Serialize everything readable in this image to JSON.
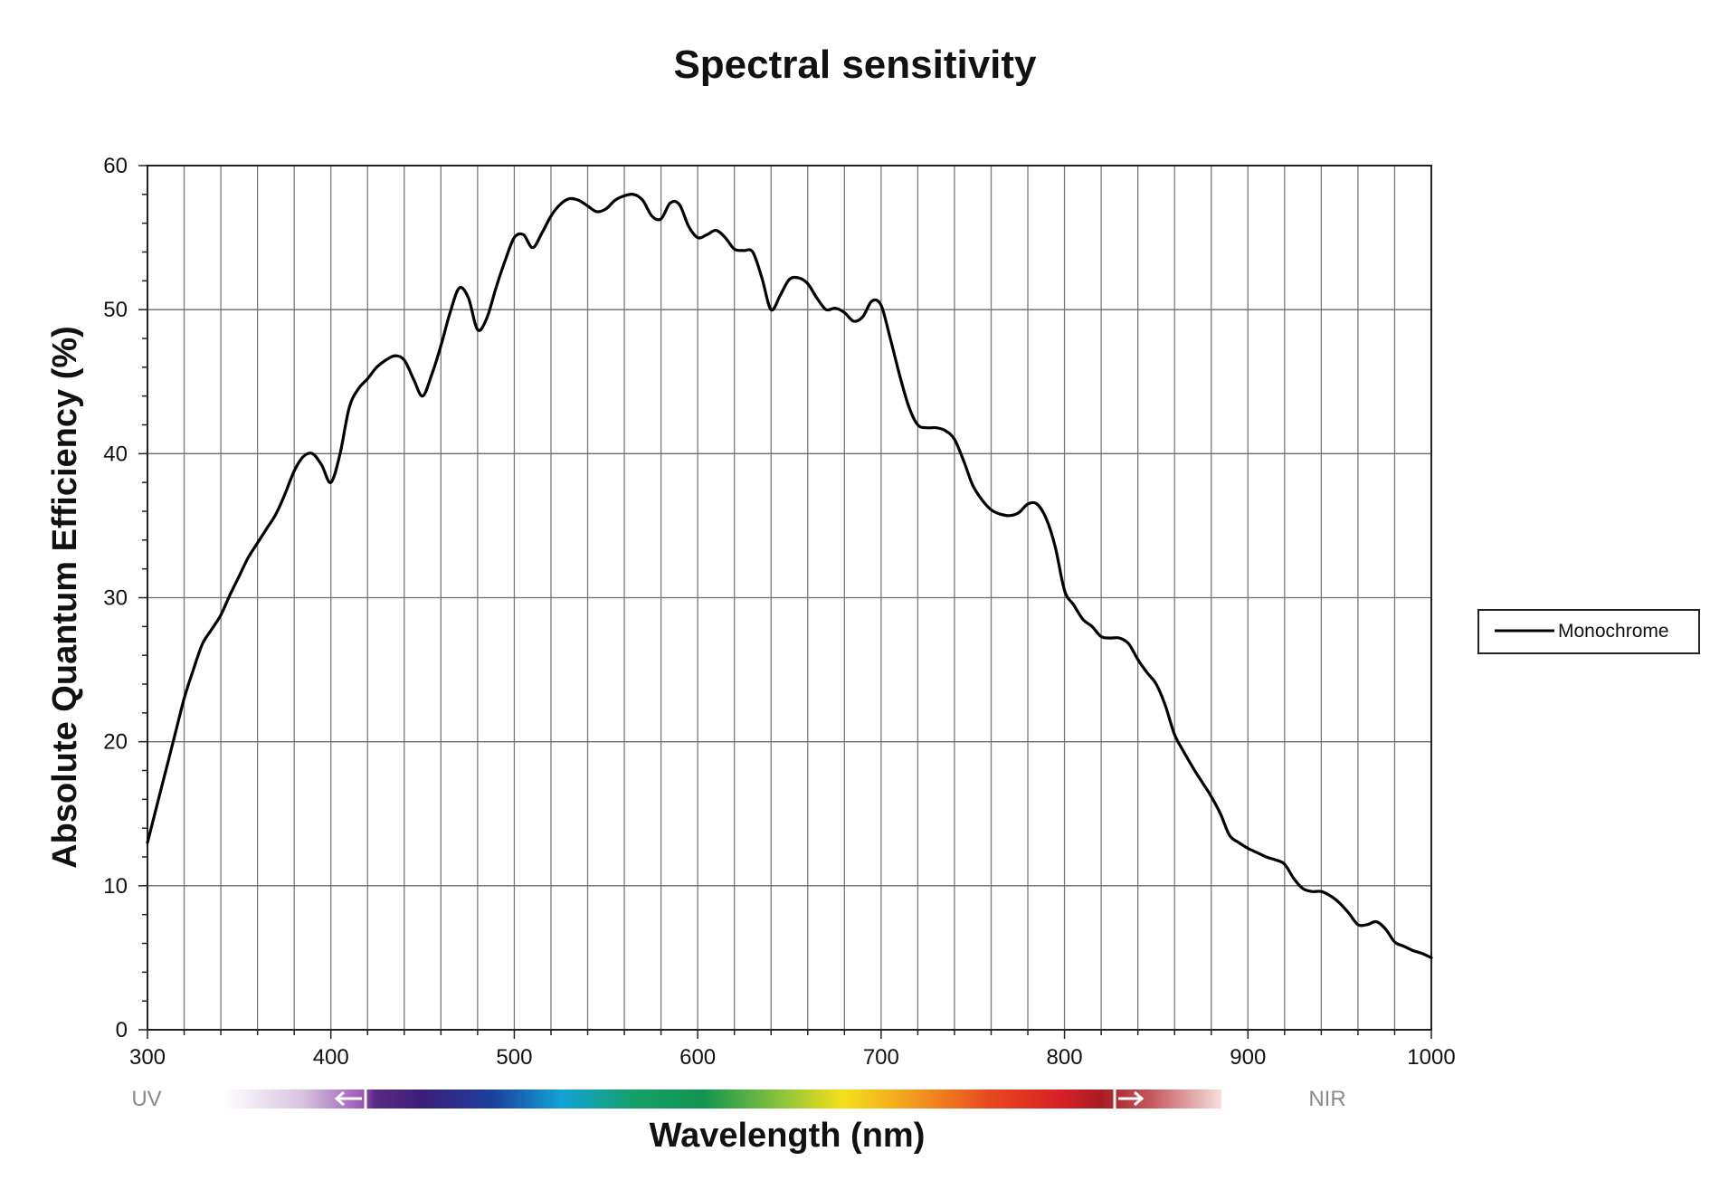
{
  "chart_data": {
    "type": "line",
    "title": "Spectral sensitivity",
    "xlabel": "Wavelength (nm)",
    "ylabel": "Absolute Quantum Efficiency (%)",
    "xlim": [
      300,
      1000
    ],
    "ylim": [
      0,
      60
    ],
    "x_ticks": [
      300,
      400,
      500,
      600,
      700,
      800,
      900,
      1000
    ],
    "y_ticks": [
      0,
      10,
      20,
      30,
      40,
      50,
      60
    ],
    "x_minor_step": 20,
    "y_minor_step": 2,
    "grid": true,
    "legend_position": "right",
    "spectrum_labels": {
      "left": "UV",
      "right": "NIR"
    },
    "series": [
      {
        "name": "Monochrome",
        "color": "#000000",
        "x": [
          300,
          305,
          310,
          315,
          320,
          325,
          330,
          335,
          340,
          345,
          350,
          355,
          360,
          365,
          370,
          375,
          380,
          385,
          390,
          395,
          400,
          405,
          410,
          415,
          420,
          425,
          430,
          435,
          440,
          445,
          450,
          455,
          460,
          465,
          470,
          475,
          480,
          485,
          490,
          495,
          500,
          505,
          510,
          515,
          520,
          525,
          530,
          535,
          540,
          545,
          550,
          555,
          560,
          565,
          570,
          575,
          580,
          585,
          590,
          595,
          600,
          605,
          610,
          615,
          620,
          625,
          630,
          635,
          640,
          645,
          650,
          655,
          660,
          665,
          670,
          675,
          680,
          685,
          690,
          695,
          700,
          705,
          710,
          715,
          720,
          725,
          730,
          735,
          740,
          745,
          750,
          755,
          760,
          765,
          770,
          775,
          780,
          785,
          790,
          795,
          800,
          805,
          810,
          815,
          820,
          825,
          830,
          835,
          840,
          845,
          850,
          855,
          860,
          865,
          870,
          875,
          880,
          885,
          890,
          895,
          900,
          905,
          910,
          915,
          920,
          925,
          930,
          935,
          940,
          945,
          950,
          955,
          960,
          965,
          970,
          975,
          980,
          985,
          990,
          995,
          1000
        ],
        "y": [
          13.0,
          15.5,
          18.0,
          20.5,
          23.0,
          25.0,
          26.8,
          27.8,
          28.8,
          30.2,
          31.5,
          32.8,
          33.8,
          34.8,
          35.8,
          37.2,
          38.8,
          39.8,
          40.0,
          39.2,
          38.0,
          40.0,
          43.2,
          44.5,
          45.2,
          46.0,
          46.5,
          46.8,
          46.5,
          45.2,
          44.0,
          45.5,
          47.5,
          49.8,
          51.5,
          50.8,
          48.6,
          49.4,
          51.5,
          53.4,
          55.0,
          55.2,
          54.3,
          55.3,
          56.5,
          57.3,
          57.7,
          57.6,
          57.2,
          56.8,
          57.0,
          57.6,
          57.9,
          58.0,
          57.6,
          56.5,
          56.3,
          57.4,
          57.3,
          55.8,
          55.0,
          55.2,
          55.5,
          55.0,
          54.2,
          54.1,
          54.0,
          52.2,
          50.0,
          51.0,
          52.1,
          52.2,
          51.8,
          50.8,
          50.0,
          50.1,
          49.8,
          49.2,
          49.5,
          50.6,
          50.3,
          48.0,
          45.5,
          43.3,
          42.0,
          41.8,
          41.8,
          41.6,
          41.0,
          39.5,
          37.8,
          36.8,
          36.1,
          35.8,
          35.7,
          35.9,
          36.5,
          36.5,
          35.5,
          33.5,
          30.5,
          29.5,
          28.5,
          28.0,
          27.3,
          27.2,
          27.2,
          26.8,
          25.7,
          24.8,
          24.0,
          22.5,
          20.5,
          19.3,
          18.2,
          17.2,
          16.2,
          15.0,
          13.5,
          13.0,
          12.6,
          12.3,
          12.0,
          11.8,
          11.5,
          10.5,
          9.8,
          9.6,
          9.6,
          9.3,
          8.8,
          8.1,
          7.3,
          7.3,
          7.5,
          7.0,
          6.1,
          5.8,
          5.5,
          5.3,
          5.0
        ]
      }
    ]
  }
}
